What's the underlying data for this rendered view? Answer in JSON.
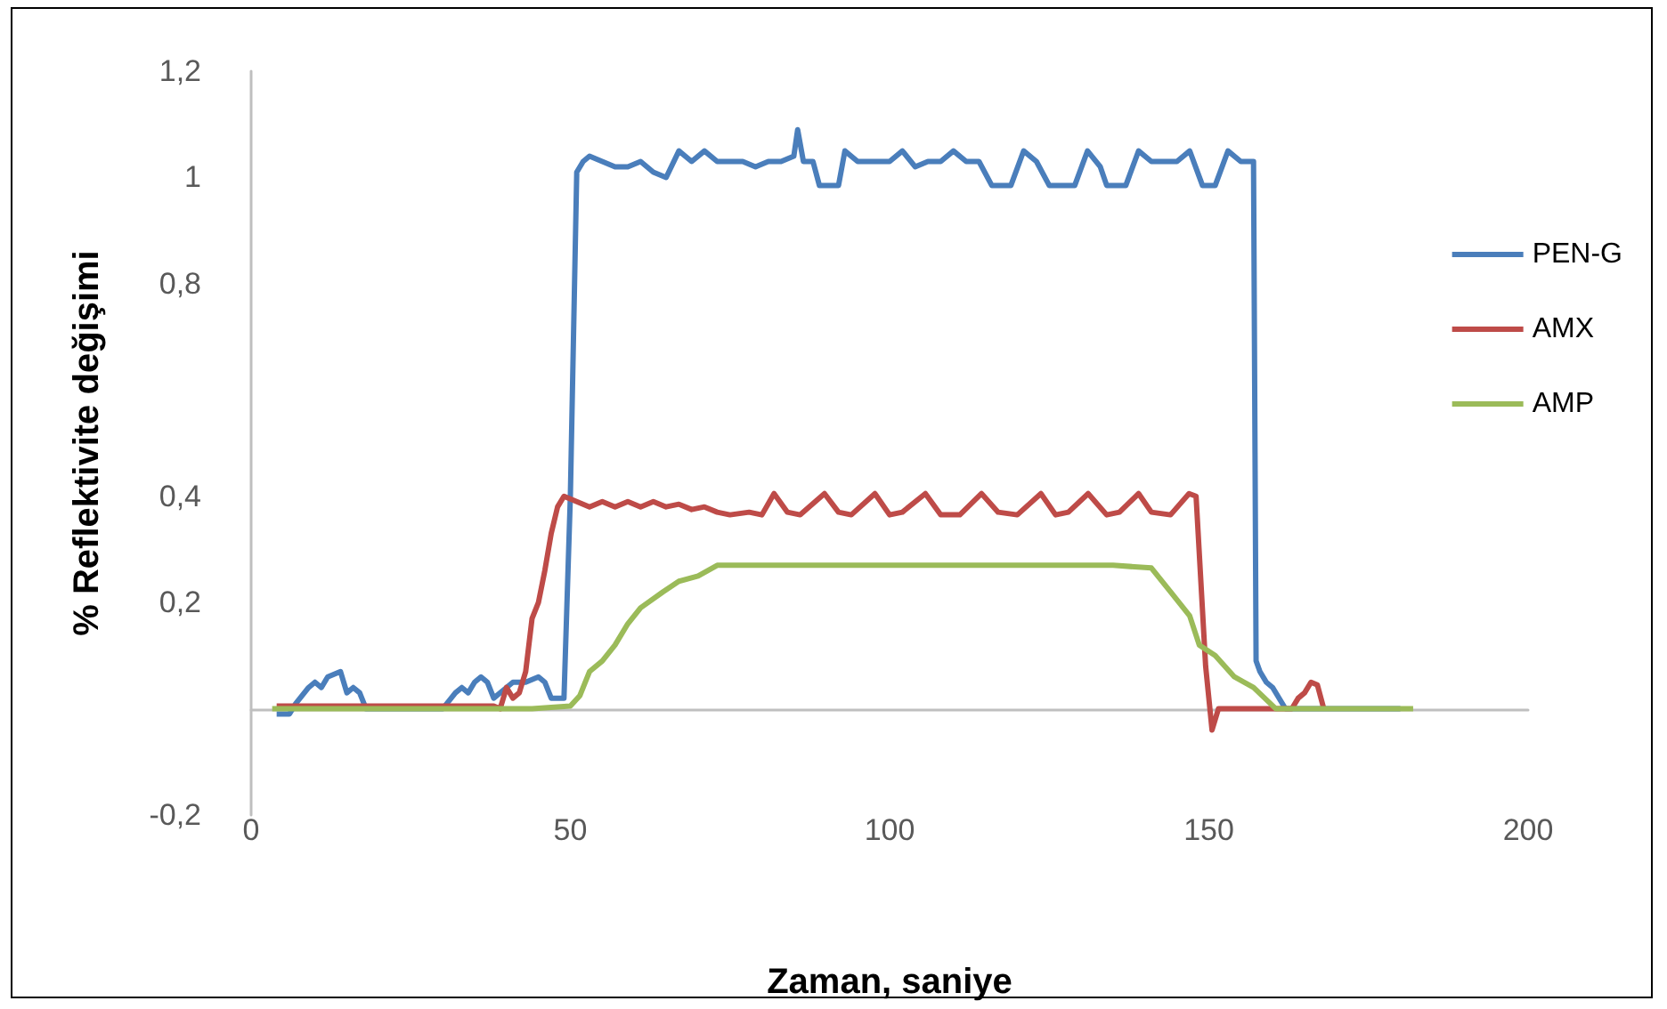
{
  "chart_data": {
    "type": "line",
    "xlabel": "Zaman, saniye",
    "ylabel": "% Reflektivite değişimi",
    "xlim": [
      0,
      200
    ],
    "xticks": [
      0,
      50,
      100,
      150,
      200
    ],
    "ylim": [
      -0.2,
      1.2
    ],
    "yticks": [
      {
        "value": -0.2,
        "label": "-0,2"
      },
      {
        "value": 0.2,
        "label": "0,2"
      },
      {
        "value": 0.4,
        "label": "0,4"
      },
      {
        "value": 0.8,
        "label": "0,8"
      },
      {
        "value": 1,
        "label": "1"
      },
      {
        "value": 1.2,
        "label": "1,2"
      }
    ],
    "grid": false,
    "legend": "right",
    "marker": "none",
    "line_style": "solid",
    "series": [
      {
        "name": "PEN-G",
        "color": "#4a7ebb",
        "x": [
          4,
          6,
          7,
          9,
          10,
          11,
          12,
          14,
          15,
          16,
          17,
          18,
          30,
          32,
          33,
          34,
          35,
          36,
          37,
          38,
          40,
          41,
          43,
          45,
          46,
          47,
          49,
          50,
          51,
          52,
          53,
          55,
          57,
          59,
          61,
          63,
          65,
          67,
          69,
          71,
          73,
          75,
          77,
          79,
          81,
          83,
          85,
          85.6,
          86.5,
          88,
          89,
          92,
          93,
          95,
          97,
          100,
          102,
          104,
          106,
          108,
          110,
          112,
          114,
          116,
          119,
          121,
          123,
          125,
          129,
          131,
          133,
          134,
          137,
          139,
          141,
          143,
          145,
          147,
          149,
          151,
          153,
          155,
          156,
          157,
          157.4,
          158,
          159,
          160,
          162,
          170,
          180
        ],
        "values": [
          -0.01,
          -0.01,
          0.01,
          0.04,
          0.05,
          0.04,
          0.06,
          0.07,
          0.03,
          0.04,
          0.03,
          0,
          0,
          0.03,
          0.04,
          0.03,
          0.05,
          0.06,
          0.05,
          0.02,
          0.04,
          0.05,
          0.05,
          0.06,
          0.05,
          0.02,
          0.02,
          0.4,
          1.01,
          1.03,
          1.04,
          1.03,
          1.02,
          1.02,
          1.03,
          1.01,
          1,
          1.05,
          1.03,
          1.05,
          1.03,
          1.03,
          1.03,
          1.02,
          1.03,
          1.03,
          1.04,
          1.09,
          1.03,
          1.03,
          0.985,
          0.985,
          1.05,
          1.03,
          1.03,
          1.03,
          1.05,
          1.02,
          1.03,
          1.03,
          1.05,
          1.03,
          1.03,
          0.985,
          0.985,
          1.05,
          1.03,
          0.985,
          0.985,
          1.05,
          1.02,
          0.985,
          0.985,
          1.05,
          1.03,
          1.03,
          1.03,
          1.05,
          0.985,
          0.985,
          1.05,
          1.03,
          1.03,
          1.03,
          0.09,
          0.07,
          0.05,
          0.04,
          0,
          0,
          0
        ]
      },
      {
        "name": "AMX",
        "color": "#be4b48",
        "x": [
          4,
          38,
          39,
          40,
          41,
          42,
          43,
          44,
          45,
          46,
          47,
          48,
          49,
          51,
          53,
          55,
          57,
          59,
          61,
          63,
          65,
          67,
          69,
          71,
          73,
          75,
          78,
          80,
          81.9,
          84,
          86,
          89.8,
          92,
          94,
          97.7,
          100,
          102,
          105.6,
          108,
          111,
          114.4,
          117,
          120,
          123.7,
          126,
          128,
          131.1,
          134,
          136,
          139,
          141,
          144,
          146.9,
          148,
          149.5,
          150.5,
          151.5,
          163,
          164,
          165,
          166,
          167,
          168
        ],
        "values": [
          0.005,
          0.005,
          0,
          0.04,
          0.02,
          0.03,
          0.07,
          0.17,
          0.2,
          0.26,
          0.33,
          0.38,
          0.4,
          0.39,
          0.38,
          0.39,
          0.38,
          0.39,
          0.38,
          0.39,
          0.38,
          0.385,
          0.375,
          0.38,
          0.37,
          0.365,
          0.37,
          0.365,
          0.405,
          0.37,
          0.365,
          0.405,
          0.37,
          0.365,
          0.405,
          0.365,
          0.37,
          0.405,
          0.365,
          0.365,
          0.405,
          0.37,
          0.365,
          0.405,
          0.365,
          0.37,
          0.405,
          0.365,
          0.37,
          0.405,
          0.37,
          0.365,
          0.405,
          0.4,
          0.08,
          -0.04,
          0,
          0,
          0.02,
          0.03,
          0.05,
          0.045,
          0
        ]
      },
      {
        "name": "AMP",
        "color": "#9bbb59",
        "x": [
          3.3,
          44,
          50,
          51.5,
          53,
          55,
          57,
          59,
          61,
          64.5,
          67,
          70,
          73,
          80,
          100,
          120,
          135,
          141,
          144,
          147,
          148.5,
          151,
          154,
          157,
          160.5,
          170,
          182
        ],
        "values": [
          0,
          0,
          0.005,
          0.025,
          0.07,
          0.09,
          0.12,
          0.16,
          0.19,
          0.22,
          0.24,
          0.25,
          0.27,
          0.27,
          0.27,
          0.27,
          0.27,
          0.265,
          0.22,
          0.175,
          0.12,
          0.1,
          0.06,
          0.04,
          0,
          0,
          0
        ]
      }
    ]
  }
}
